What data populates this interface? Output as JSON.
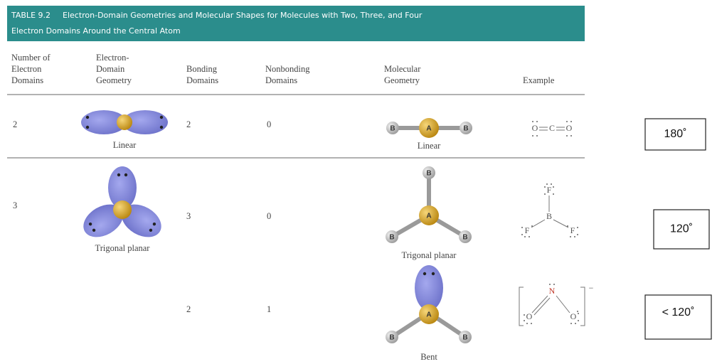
{
  "header": {
    "label": "TABLE 9.2",
    "title_lines": [
      "Electron-Domain Geometries and Molecular Shapes for Molecules with Two, Three, and Four",
      "Electron Domains Around the Central Atom"
    ]
  },
  "table": {
    "columns": [
      [
        "Number of",
        "Electron",
        "Domains"
      ],
      [
        "Electron-",
        "Domain",
        "Geometry"
      ],
      [
        "Bonding",
        "Domains"
      ],
      [
        "Nonbonding",
        "Domains"
      ],
      [
        "Molecular",
        "Geometry"
      ],
      [
        "Example"
      ]
    ],
    "rows": [
      {
        "electron_domains": 2,
        "electron_domain_geometry": "Linear",
        "bonding_domains": 2,
        "nonbonding_domains": 0,
        "molecular_geometry": "Linear"
      },
      {
        "electron_domains": 3,
        "electron_domain_geometry": "Trigonal planar",
        "bonding_domains": 3,
        "nonbonding_domains": 0,
        "molecular_geometry": "Trigonal planar"
      },
      {
        "bonding_domains": 2,
        "nonbonding_domains": 1,
        "molecular_geometry": "Bent"
      }
    ]
  },
  "diagram_labels": {
    "central_atom": "A",
    "terminal_atom": "B"
  },
  "examples": [
    {
      "atoms": [
        "O",
        "C",
        "O"
      ]
    },
    {
      "atoms": [
        "F",
        "B",
        "F",
        "F"
      ]
    },
    {
      "atoms": [
        "O",
        "N",
        "O"
      ],
      "charge": "−"
    }
  ],
  "bond_angles": [
    "180˚",
    "120˚",
    "< 120˚"
  ]
}
